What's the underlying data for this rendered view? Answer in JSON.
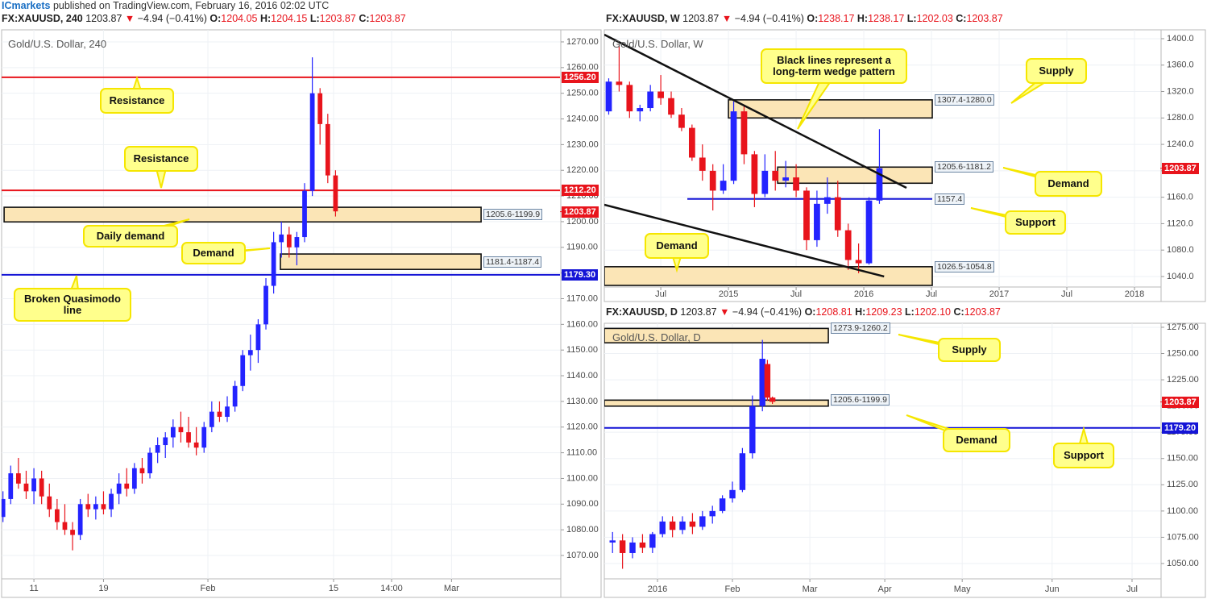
{
  "publisher": {
    "brand": "ICmarkets",
    "text": "published on TradingView.com, February 16, 2016 02:02 UTC"
  },
  "chart_data": [
    {
      "type": "candlestick",
      "title": "Gold/U.S. Dollar, 240",
      "header": {
        "symbol": "FX:XAUUSD, 240",
        "last": "1203.87",
        "arrow": "▼",
        "change": "−4.94 (−0.41%)",
        "ohlc": [
          [
            "O:",
            "1204.05"
          ],
          [
            "H:",
            "1204.15"
          ],
          [
            "L:",
            "1203.87"
          ],
          [
            "C:",
            "1203.87"
          ]
        ]
      },
      "up_color": "#2323ff",
      "down_color": "#e8141c",
      "x": [
        -16,
        -12,
        -8,
        -4,
        0,
        4,
        8,
        12,
        16,
        20,
        24,
        28,
        32,
        36,
        40,
        44,
        48,
        52,
        56,
        60,
        64,
        68,
        72,
        76,
        80,
        84,
        88,
        92,
        96,
        100,
        104,
        108,
        112,
        116,
        120,
        124,
        128,
        132,
        136,
        140,
        144,
        148,
        152,
        156
      ],
      "open": [
        1085,
        1092,
        1102,
        1098,
        1095,
        1100,
        1093,
        1088,
        1083,
        1080,
        1078,
        1090,
        1088,
        1090,
        1088,
        1094,
        1098,
        1096,
        1104,
        1102,
        1110,
        1113,
        1116,
        1120,
        1118,
        1114,
        1112,
        1120,
        1126,
        1124,
        1128,
        1136,
        1148,
        1150,
        1160,
        1175,
        1192,
        1195,
        1190,
        1194,
        1212,
        1250,
        1238,
        1218
      ],
      "high": [
        1095,
        1105,
        1108,
        1103,
        1104,
        1103,
        1098,
        1092,
        1090,
        1083,
        1092,
        1094,
        1093,
        1095,
        1096,
        1102,
        1104,
        1106,
        1108,
        1112,
        1116,
        1118,
        1123,
        1126,
        1124,
        1120,
        1122,
        1130,
        1130,
        1132,
        1138,
        1150,
        1156,
        1162,
        1178,
        1196,
        1200,
        1198,
        1196,
        1215,
        1264,
        1252,
        1242,
        1220
      ],
      "low": [
        1083,
        1090,
        1096,
        1092,
        1090,
        1090,
        1085,
        1080,
        1078,
        1072,
        1076,
        1085,
        1084,
        1086,
        1085,
        1090,
        1093,
        1094,
        1098,
        1100,
        1106,
        1108,
        1112,
        1114,
        1112,
        1109,
        1110,
        1118,
        1122,
        1122,
        1126,
        1134,
        1142,
        1145,
        1158,
        1172,
        1186,
        1186,
        1183,
        1192,
        1210,
        1230,
        1215,
        1202
      ],
      "close": [
        1092,
        1102,
        1098,
        1095,
        1100,
        1093,
        1088,
        1083,
        1080,
        1078,
        1090,
        1088,
        1090,
        1088,
        1094,
        1098,
        1096,
        1104,
        1102,
        1110,
        1113,
        1116,
        1120,
        1118,
        1114,
        1112,
        1120,
        1126,
        1124,
        1128,
        1136,
        1148,
        1150,
        1160,
        1175,
        1192,
        1195,
        1190,
        1194,
        1212,
        1250,
        1238,
        1218,
        1204
      ],
      "xlim": [
        -16.7,
        272.1
      ],
      "ylim": [
        1060.9,
        1274.7
      ],
      "xticks": [
        {
          "value": 0,
          "label": "11"
        },
        {
          "value": 36,
          "label": "19"
        },
        {
          "value": 90,
          "label": "Feb"
        },
        {
          "value": 155,
          "label": "15"
        },
        {
          "value": 185,
          "label": "14:00"
        },
        {
          "value": 216,
          "label": "Mar"
        }
      ],
      "yticks": [
        {
          "value": 1070,
          "label": "1070.00"
        },
        {
          "value": 1080,
          "label": "1080.00"
        },
        {
          "value": 1090,
          "label": "1090.00"
        },
        {
          "value": 1100,
          "label": "1100.00"
        },
        {
          "value": 1110,
          "label": "1110.00"
        },
        {
          "value": 1120,
          "label": "1120.00"
        },
        {
          "value": 1130,
          "label": "1130.00"
        },
        {
          "value": 1140,
          "label": "1140.00"
        },
        {
          "value": 1150,
          "label": "1150.00"
        },
        {
          "value": 1160,
          "label": "1160.00"
        },
        {
          "value": 1170,
          "label": "1170.00"
        },
        {
          "value": 1180,
          "label": "1180.00"
        },
        {
          "value": 1190,
          "label": "1190.00"
        },
        {
          "value": 1200,
          "label": "1200.00"
        },
        {
          "value": 1210,
          "label": "1210.00"
        },
        {
          "value": 1220,
          "label": "1220.00"
        },
        {
          "value": 1230,
          "label": "1230.00"
        },
        {
          "value": 1240,
          "label": "1240.00"
        },
        {
          "value": 1250,
          "label": "1250.00"
        },
        {
          "value": 1260,
          "label": "1260.00"
        },
        {
          "value": 1270,
          "label": "1270.00"
        }
      ],
      "zones": [
        {
          "top": 1205.6,
          "bottom": 1199.9,
          "x_start": -15.4,
          "x_end": 231.3,
          "label": "1205.6-1199.9"
        },
        {
          "top": 1187.4,
          "bottom": 1181.4,
          "x_start": 127.5,
          "x_end": 231.3,
          "label": "1181.4-1187.4"
        }
      ],
      "lines": [
        {
          "value": 1256.2,
          "label": "1256.20",
          "color": "#e8141c"
        },
        {
          "value": 1212.2,
          "label": "1212.20",
          "color": "#e8141c"
        },
        {
          "value": 1179.3,
          "label": "1179.30",
          "color": "#1414d6"
        }
      ],
      "price_marker": {
        "value": 1203.87,
        "label": "1203.87",
        "color": "#e8141c"
      },
      "trend_lines": [],
      "annotations": [
        "Resistance",
        "Resistance",
        "Daily demand",
        "Demand",
        "Broken Quasimodo line"
      ]
    },
    {
      "type": "candlestick",
      "title": "Gold/U.S. Dollar, W",
      "header": {
        "symbol": "FX:XAUUSD, W",
        "last": "1203.87",
        "arrow": "▼",
        "change": "−4.94 (−0.41%)",
        "ohlc": [
          [
            "O:",
            "1238.17"
          ],
          [
            "H:",
            "1238.17"
          ],
          [
            "L:",
            "1202.03"
          ],
          [
            "C:",
            "1203.87"
          ]
        ]
      },
      "up_color": "#2323ff",
      "down_color": "#e8141c",
      "x": [
        -46,
        -42,
        -38,
        -34,
        -30,
        -26,
        -22,
        -18,
        -14,
        -10,
        -6,
        -2,
        2,
        6,
        10,
        14,
        18,
        22,
        26,
        30,
        34,
        38,
        42,
        46,
        50,
        54,
        58
      ],
      "open": [
        1290,
        1335,
        1330,
        1290,
        1295,
        1320,
        1310,
        1285,
        1265,
        1220,
        1200,
        1170,
        1185,
        1290,
        1225,
        1165,
        1200,
        1185,
        1190,
        1170,
        1095,
        1150,
        1160,
        1110,
        1065,
        1060,
        1155
      ],
      "high": [
        1340,
        1392,
        1335,
        1300,
        1330,
        1345,
        1320,
        1295,
        1270,
        1240,
        1210,
        1210,
        1305,
        1300,
        1230,
        1225,
        1230,
        1215,
        1210,
        1175,
        1170,
        1190,
        1185,
        1120,
        1090,
        1160,
        1263
      ],
      "low": [
        1285,
        1320,
        1280,
        1275,
        1290,
        1300,
        1280,
        1260,
        1215,
        1185,
        1140,
        1165,
        1180,
        1210,
        1145,
        1160,
        1170,
        1175,
        1160,
        1080,
        1085,
        1135,
        1100,
        1050,
        1045,
        1058,
        1150
      ],
      "close": [
        1335,
        1330,
        1290,
        1295,
        1320,
        1310,
        1285,
        1265,
        1220,
        1200,
        1170,
        1185,
        1290,
        1225,
        1165,
        1200,
        1185,
        1190,
        1170,
        1095,
        1150,
        1160,
        1110,
        1065,
        1060,
        1155,
        1204
      ],
      "xlim": [
        -47.7,
        165.9
      ],
      "ylim": [
        1024.1,
        1413.4
      ],
      "xticks": [
        {
          "value": -26,
          "label": "Jul"
        },
        {
          "value": 0,
          "label": "2015"
        },
        {
          "value": 26,
          "label": "Jul"
        },
        {
          "value": 52,
          "label": "2016"
        },
        {
          "value": 78,
          "label": "Jul"
        },
        {
          "value": 104,
          "label": "2017"
        },
        {
          "value": 130,
          "label": "Jul"
        },
        {
          "value": 156,
          "label": "2018"
        }
      ],
      "yticks": [
        {
          "value": 1040,
          "label": "1040.0"
        },
        {
          "value": 1080,
          "label": "1080.0"
        },
        {
          "value": 1120,
          "label": "1120.0"
        },
        {
          "value": 1160,
          "label": "1160.0"
        },
        {
          "value": 1200,
          "label": "1200.0"
        },
        {
          "value": 1240,
          "label": "1240.0"
        },
        {
          "value": 1280,
          "label": "1280.0"
        },
        {
          "value": 1320,
          "label": "1320.0"
        },
        {
          "value": 1360,
          "label": "1360.0"
        },
        {
          "value": 1400,
          "label": "1400.0"
        }
      ],
      "zones": [
        {
          "top": 1307.4,
          "bottom": 1280,
          "x_start": 0,
          "x_end": 78.3,
          "label": "1307.4-1280.0"
        },
        {
          "top": 1205.6,
          "bottom": 1181.2,
          "x_start": 18.9,
          "x_end": 78.3,
          "label": "1205.6-1181.2"
        },
        {
          "top": 1054.8,
          "bottom": 1026.5,
          "x_start": -47.7,
          "x_end": 78.3,
          "label": "1026.5-1054.8"
        }
      ],
      "lines": [
        {
          "value": 1157.4,
          "label": "1157.4",
          "color": "#1414d6",
          "x_start": -15.8,
          "x_end": 78.3
        }
      ],
      "price_marker": {
        "value": 1203.87,
        "label": "1203.87",
        "color": "#e8141c"
      },
      "trend_lines": [
        {
          "x": [
            -47.7,
            68.4
          ],
          "y": [
            1406.1,
            1174.2
          ]
        },
        {
          "x": [
            -47.7,
            59.8
          ],
          "y": [
            1148.6,
            1040
          ]
        }
      ],
      "annotations": [
        "Black lines represent a long-term wedge pattern",
        "Supply",
        "Demand",
        "Support",
        "Demand"
      ]
    },
    {
      "type": "candlestick",
      "title": "Gold/U.S. Dollar, D",
      "header": {
        "symbol": "FX:XAUUSD, D",
        "last": "1203.87",
        "arrow": "▼",
        "change": "−4.94 (−0.41%)",
        "ohlc": [
          [
            "O:",
            "1208.81"
          ],
          [
            "H:",
            "1209.23"
          ],
          [
            "L:",
            "1202.10"
          ],
          [
            "C:",
            "1203.87"
          ]
        ]
      },
      "up_color": "#2323ff",
      "down_color": "#e8141c",
      "x": [
        -18,
        -14,
        -10,
        -6,
        -2,
        2,
        6,
        10,
        14,
        18,
        22,
        26,
        30,
        34,
        38,
        42,
        44,
        46
      ],
      "open": [
        1070,
        1072,
        1060,
        1070,
        1065,
        1078,
        1090,
        1082,
        1090,
        1085,
        1095,
        1100,
        1112,
        1120,
        1155,
        1200,
        1240,
        1208
      ],
      "high": [
        1080,
        1078,
        1075,
        1078,
        1080,
        1095,
        1095,
        1095,
        1098,
        1100,
        1105,
        1115,
        1128,
        1160,
        1210,
        1263,
        1244,
        1209
      ],
      "low": [
        1060,
        1045,
        1055,
        1060,
        1060,
        1075,
        1075,
        1078,
        1078,
        1082,
        1088,
        1098,
        1108,
        1118,
        1150,
        1195,
        1205,
        1202
      ],
      "close": [
        1072,
        1060,
        1070,
        1065,
        1078,
        1090,
        1082,
        1090,
        1085,
        1095,
        1100,
        1112,
        1120,
        1155,
        1200,
        1245,
        1208,
        1204
      ],
      "xlim": [
        -21.3,
        201.3
      ],
      "ylim": [
        1035.4,
        1278.8
      ],
      "xticks": [
        {
          "value": 0,
          "label": "2016"
        },
        {
          "value": 30,
          "label": "Feb"
        },
        {
          "value": 61,
          "label": "Mar"
        },
        {
          "value": 91,
          "label": "Apr"
        },
        {
          "value": 122,
          "label": "May"
        },
        {
          "value": 158,
          "label": "Jun"
        },
        {
          "value": 190,
          "label": "Jul"
        }
      ],
      "yticks": [
        {
          "value": 1050,
          "label": "1050.00"
        },
        {
          "value": 1075,
          "label": "1075.00"
        },
        {
          "value": 1100,
          "label": "1100.00"
        },
        {
          "value": 1125,
          "label": "1125.00"
        },
        {
          "value": 1150,
          "label": "1150.00"
        },
        {
          "value": 1175,
          "label": "1175.00"
        },
        {
          "value": 1200,
          "label": "1200.00"
        },
        {
          "value": 1225,
          "label": "1225.00"
        },
        {
          "value": 1250,
          "label": "1250.00"
        },
        {
          "value": 1275,
          "label": "1275.00"
        }
      ],
      "zones": [
        {
          "top": 1273.9,
          "bottom": 1260.2,
          "x_start": -21.3,
          "x_end": 68.4,
          "label": "1273.9-1260.2"
        },
        {
          "top": 1205.6,
          "bottom": 1199.9,
          "x_start": -21.3,
          "x_end": 68.4,
          "label": "1205.6-1199.9"
        }
      ],
      "lines": [
        {
          "value": 1179.2,
          "label": "1179.20",
          "color": "#1414d6"
        }
      ],
      "price_marker": {
        "value": 1203.87,
        "label": "1203.87",
        "color": "#e8141c"
      },
      "trend_lines": [],
      "annotations": [
        "Supply",
        "Demand",
        "Support"
      ]
    }
  ]
}
